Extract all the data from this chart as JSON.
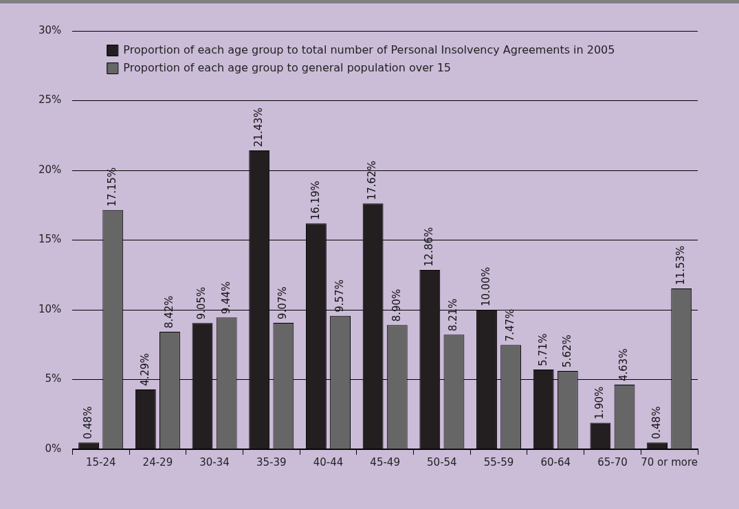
{
  "chart_data": {
    "type": "bar",
    "categories": [
      "15-24",
      "24-29",
      "30-34",
      "35-39",
      "40-44",
      "45-49",
      "50-54",
      "55-59",
      "60-64",
      "65-70",
      "70 or more"
    ],
    "series": [
      {
        "name": "Proportion of each age group to total number of Personal Insolvency Agreements in 2005",
        "color": "#231f20",
        "values": [
          0.48,
          4.29,
          9.05,
          21.43,
          16.19,
          17.62,
          12.86,
          10.0,
          5.71,
          1.9,
          0.48
        ],
        "value_labels": [
          "0.48%",
          "4.29%",
          "9.05%",
          "21.43%",
          "16.19%",
          "17.62%",
          "12.86%",
          "10.00%",
          "5.71%",
          "1.90%",
          "0.48%"
        ]
      },
      {
        "name": "Proportion of each age group to general population over 15",
        "color": "#666666",
        "values": [
          17.15,
          8.42,
          9.44,
          9.07,
          9.57,
          8.9,
          8.21,
          7.47,
          5.62,
          4.63,
          11.53
        ],
        "value_labels": [
          "17.15%",
          "8.42%",
          "9.44%",
          "9.07%",
          "9.57%",
          "8.90%",
          "8.21%",
          "7.47%",
          "5.62%",
          "4.63%",
          "11.53%"
        ]
      }
    ],
    "ylim": [
      0,
      30
    ],
    "yticks": [
      {
        "value": 0,
        "label": "0%"
      },
      {
        "value": 5,
        "label": "5%"
      },
      {
        "value": 10,
        "label": "10%"
      },
      {
        "value": 15,
        "label": "15%"
      },
      {
        "value": 20,
        "label": "20%"
      },
      {
        "value": 25,
        "label": "25%"
      },
      {
        "value": 30,
        "label": "30%"
      }
    ],
    "grid": "y",
    "legend": "top left"
  }
}
